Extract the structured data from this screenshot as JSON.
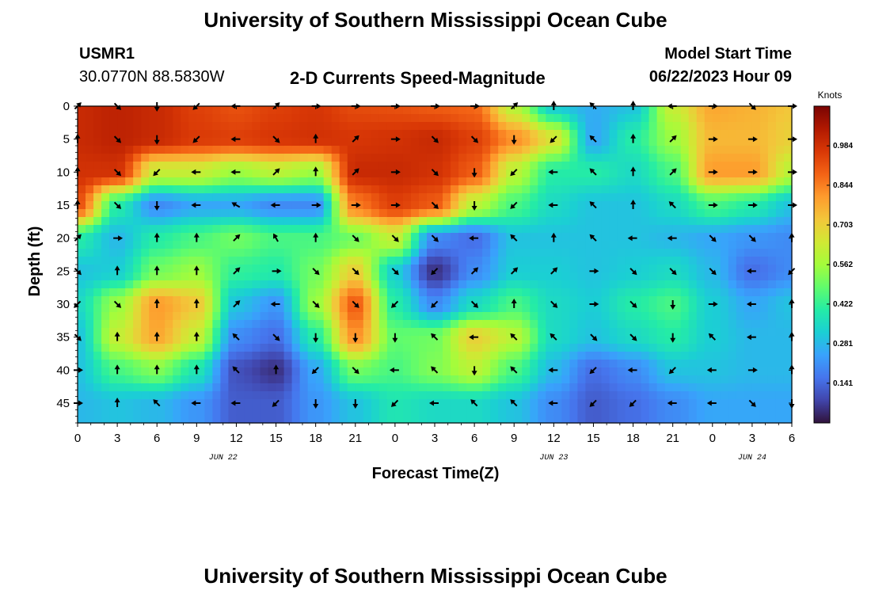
{
  "header": {
    "title": "University of Southern Mississippi Ocean Cube",
    "station_id": "USMR1",
    "station_coords": "30.0770N  88.5830W",
    "plot_title": "2-D Currents Speed-Magnitude",
    "model_start_label": "Model Start Time",
    "model_start_value": "06/22/2023 Hour 09",
    "footer_title": "University of Southern Mississippi Ocean Cube"
  },
  "chart_data": {
    "type": "heatmap",
    "title": "2-D Currents Speed-Magnitude",
    "xlabel": "Forecast Time(Z)",
    "ylabel": "Depth (ft)",
    "colorbar_label": "Knots",
    "x_tick_labels": [
      "0",
      "3",
      "6",
      "9",
      "12",
      "15",
      "18",
      "21",
      "0",
      "3",
      "6",
      "9",
      "12",
      "15",
      "18",
      "21",
      "0",
      "3",
      "6"
    ],
    "x_hours": [
      0,
      3,
      6,
      9,
      12,
      15,
      18,
      21,
      24,
      27,
      30,
      33,
      36,
      39,
      42,
      45,
      48,
      51,
      54
    ],
    "date_labels": [
      {
        "label": "JUN 22",
        "hour": 11
      },
      {
        "label": "JUN 23",
        "hour": 36
      },
      {
        "label": "JUN 24",
        "hour": 51
      }
    ],
    "y_ticks": [
      0,
      5,
      10,
      15,
      20,
      25,
      30,
      35,
      40,
      45
    ],
    "xlim": [
      0,
      54
    ],
    "ylim": [
      0,
      48
    ],
    "y_inverted": true,
    "colorbar_ticks": [
      "0.984",
      "0.844",
      "0.703",
      "0.562",
      "0.422",
      "0.281",
      "0.141"
    ],
    "colorbar_values": [
      0.984,
      0.844,
      0.703,
      0.562,
      0.422,
      0.281,
      0.141
    ],
    "speed_range": [
      0.0,
      1.125
    ],
    "colormap": [
      "#30123b",
      "#4145ab",
      "#4675ed",
      "#39a2fc",
      "#1bcfd4",
      "#24eca6",
      "#61fc6c",
      "#a4fc3b",
      "#d1e834",
      "#f3c63a",
      "#fe9b2d",
      "#f36315",
      "#d93806",
      "#b11901",
      "#7a0403"
    ],
    "vector_depths": [
      0,
      5,
      10,
      15,
      20,
      25,
      30,
      35,
      40,
      45
    ],
    "vector_hours": [
      0,
      3,
      6,
      9,
      12,
      15,
      18,
      21,
      24,
      27,
      30,
      33,
      36,
      39,
      42,
      45,
      48,
      51,
      54
    ],
    "speed_grid": [
      [
        1.0,
        1.02,
        1.0,
        0.95,
        0.92,
        0.95,
        0.97,
        0.93,
        0.92,
        0.9,
        0.88,
        0.6,
        0.32,
        0.26,
        0.3,
        0.62,
        0.78,
        0.76,
        0.72
      ],
      [
        1.0,
        1.02,
        1.0,
        0.96,
        0.95,
        0.97,
        0.98,
        0.97,
        0.98,
        1.0,
        0.95,
        0.82,
        0.66,
        0.25,
        0.4,
        0.55,
        0.75,
        0.75,
        0.7
      ],
      [
        0.98,
        0.98,
        0.62,
        0.62,
        0.55,
        0.6,
        0.55,
        1.0,
        1.0,
        0.98,
        0.9,
        0.6,
        0.4,
        0.4,
        0.35,
        0.45,
        0.8,
        0.8,
        0.6
      ],
      [
        0.92,
        0.4,
        0.2,
        0.25,
        0.25,
        0.2,
        0.2,
        0.85,
        0.95,
        0.9,
        0.6,
        0.45,
        0.35,
        0.3,
        0.3,
        0.35,
        0.45,
        0.4,
        0.3
      ],
      [
        0.4,
        0.28,
        0.4,
        0.45,
        0.5,
        0.45,
        0.45,
        0.5,
        0.62,
        0.2,
        0.15,
        0.3,
        0.3,
        0.3,
        0.3,
        0.28,
        0.25,
        0.22,
        0.2
      ],
      [
        0.3,
        0.32,
        0.5,
        0.55,
        0.42,
        0.4,
        0.5,
        0.7,
        0.32,
        0.05,
        0.2,
        0.32,
        0.32,
        0.3,
        0.32,
        0.35,
        0.28,
        0.15,
        0.2
      ],
      [
        0.35,
        0.55,
        0.8,
        0.72,
        0.3,
        0.22,
        0.55,
        0.9,
        0.4,
        0.2,
        0.35,
        0.45,
        0.35,
        0.32,
        0.4,
        0.45,
        0.32,
        0.25,
        0.3
      ],
      [
        0.3,
        0.62,
        0.78,
        0.62,
        0.2,
        0.15,
        0.4,
        0.82,
        0.48,
        0.5,
        0.7,
        0.6,
        0.35,
        0.3,
        0.35,
        0.4,
        0.32,
        0.28,
        0.28
      ],
      [
        0.3,
        0.45,
        0.52,
        0.38,
        0.1,
        0.05,
        0.25,
        0.5,
        0.45,
        0.52,
        0.6,
        0.45,
        0.28,
        0.15,
        0.2,
        0.3,
        0.3,
        0.28,
        0.28
      ],
      [
        0.28,
        0.3,
        0.28,
        0.22,
        0.12,
        0.12,
        0.22,
        0.3,
        0.38,
        0.35,
        0.35,
        0.3,
        0.2,
        0.12,
        0.15,
        0.2,
        0.25,
        0.25,
        0.25
      ]
    ],
    "direction_deg": [
      [
        45,
        135,
        180,
        225,
        270,
        45,
        90,
        90,
        90,
        90,
        90,
        45,
        0,
        315,
        0,
        270,
        90,
        135,
        90
      ],
      [
        0,
        135,
        180,
        225,
        270,
        135,
        0,
        45,
        90,
        135,
        135,
        180,
        225,
        315,
        0,
        45,
        90,
        90,
        90
      ],
      [
        0,
        135,
        225,
        270,
        270,
        45,
        0,
        45,
        90,
        135,
        180,
        225,
        270,
        315,
        0,
        45,
        90,
        90,
        90
      ],
      [
        0,
        135,
        180,
        270,
        300,
        270,
        90,
        90,
        90,
        135,
        180,
        225,
        270,
        315,
        0,
        315,
        90,
        90,
        90
      ],
      [
        45,
        90,
        0,
        0,
        45,
        330,
        0,
        135,
        135,
        135,
        270,
        315,
        0,
        315,
        270,
        270,
        135,
        135,
        0
      ],
      [
        135,
        0,
        0,
        0,
        45,
        90,
        135,
        135,
        135,
        225,
        45,
        45,
        45,
        90,
        135,
        135,
        135,
        270,
        225
      ],
      [
        225,
        135,
        0,
        0,
        45,
        270,
        135,
        135,
        225,
        225,
        135,
        0,
        135,
        90,
        135,
        180,
        90,
        270,
        0
      ],
      [
        135,
        0,
        0,
        0,
        315,
        135,
        180,
        180,
        180,
        315,
        270,
        315,
        315,
        135,
        135,
        180,
        315,
        270,
        0
      ],
      [
        90,
        0,
        0,
        0,
        315,
        0,
        225,
        135,
        270,
        315,
        180,
        315,
        270,
        225,
        270,
        225,
        270,
        90,
        0
      ],
      [
        90,
        0,
        315,
        270,
        270,
        225,
        180,
        180,
        225,
        270,
        315,
        315,
        270,
        225,
        225,
        270,
        270,
        135,
        180
      ]
    ]
  }
}
